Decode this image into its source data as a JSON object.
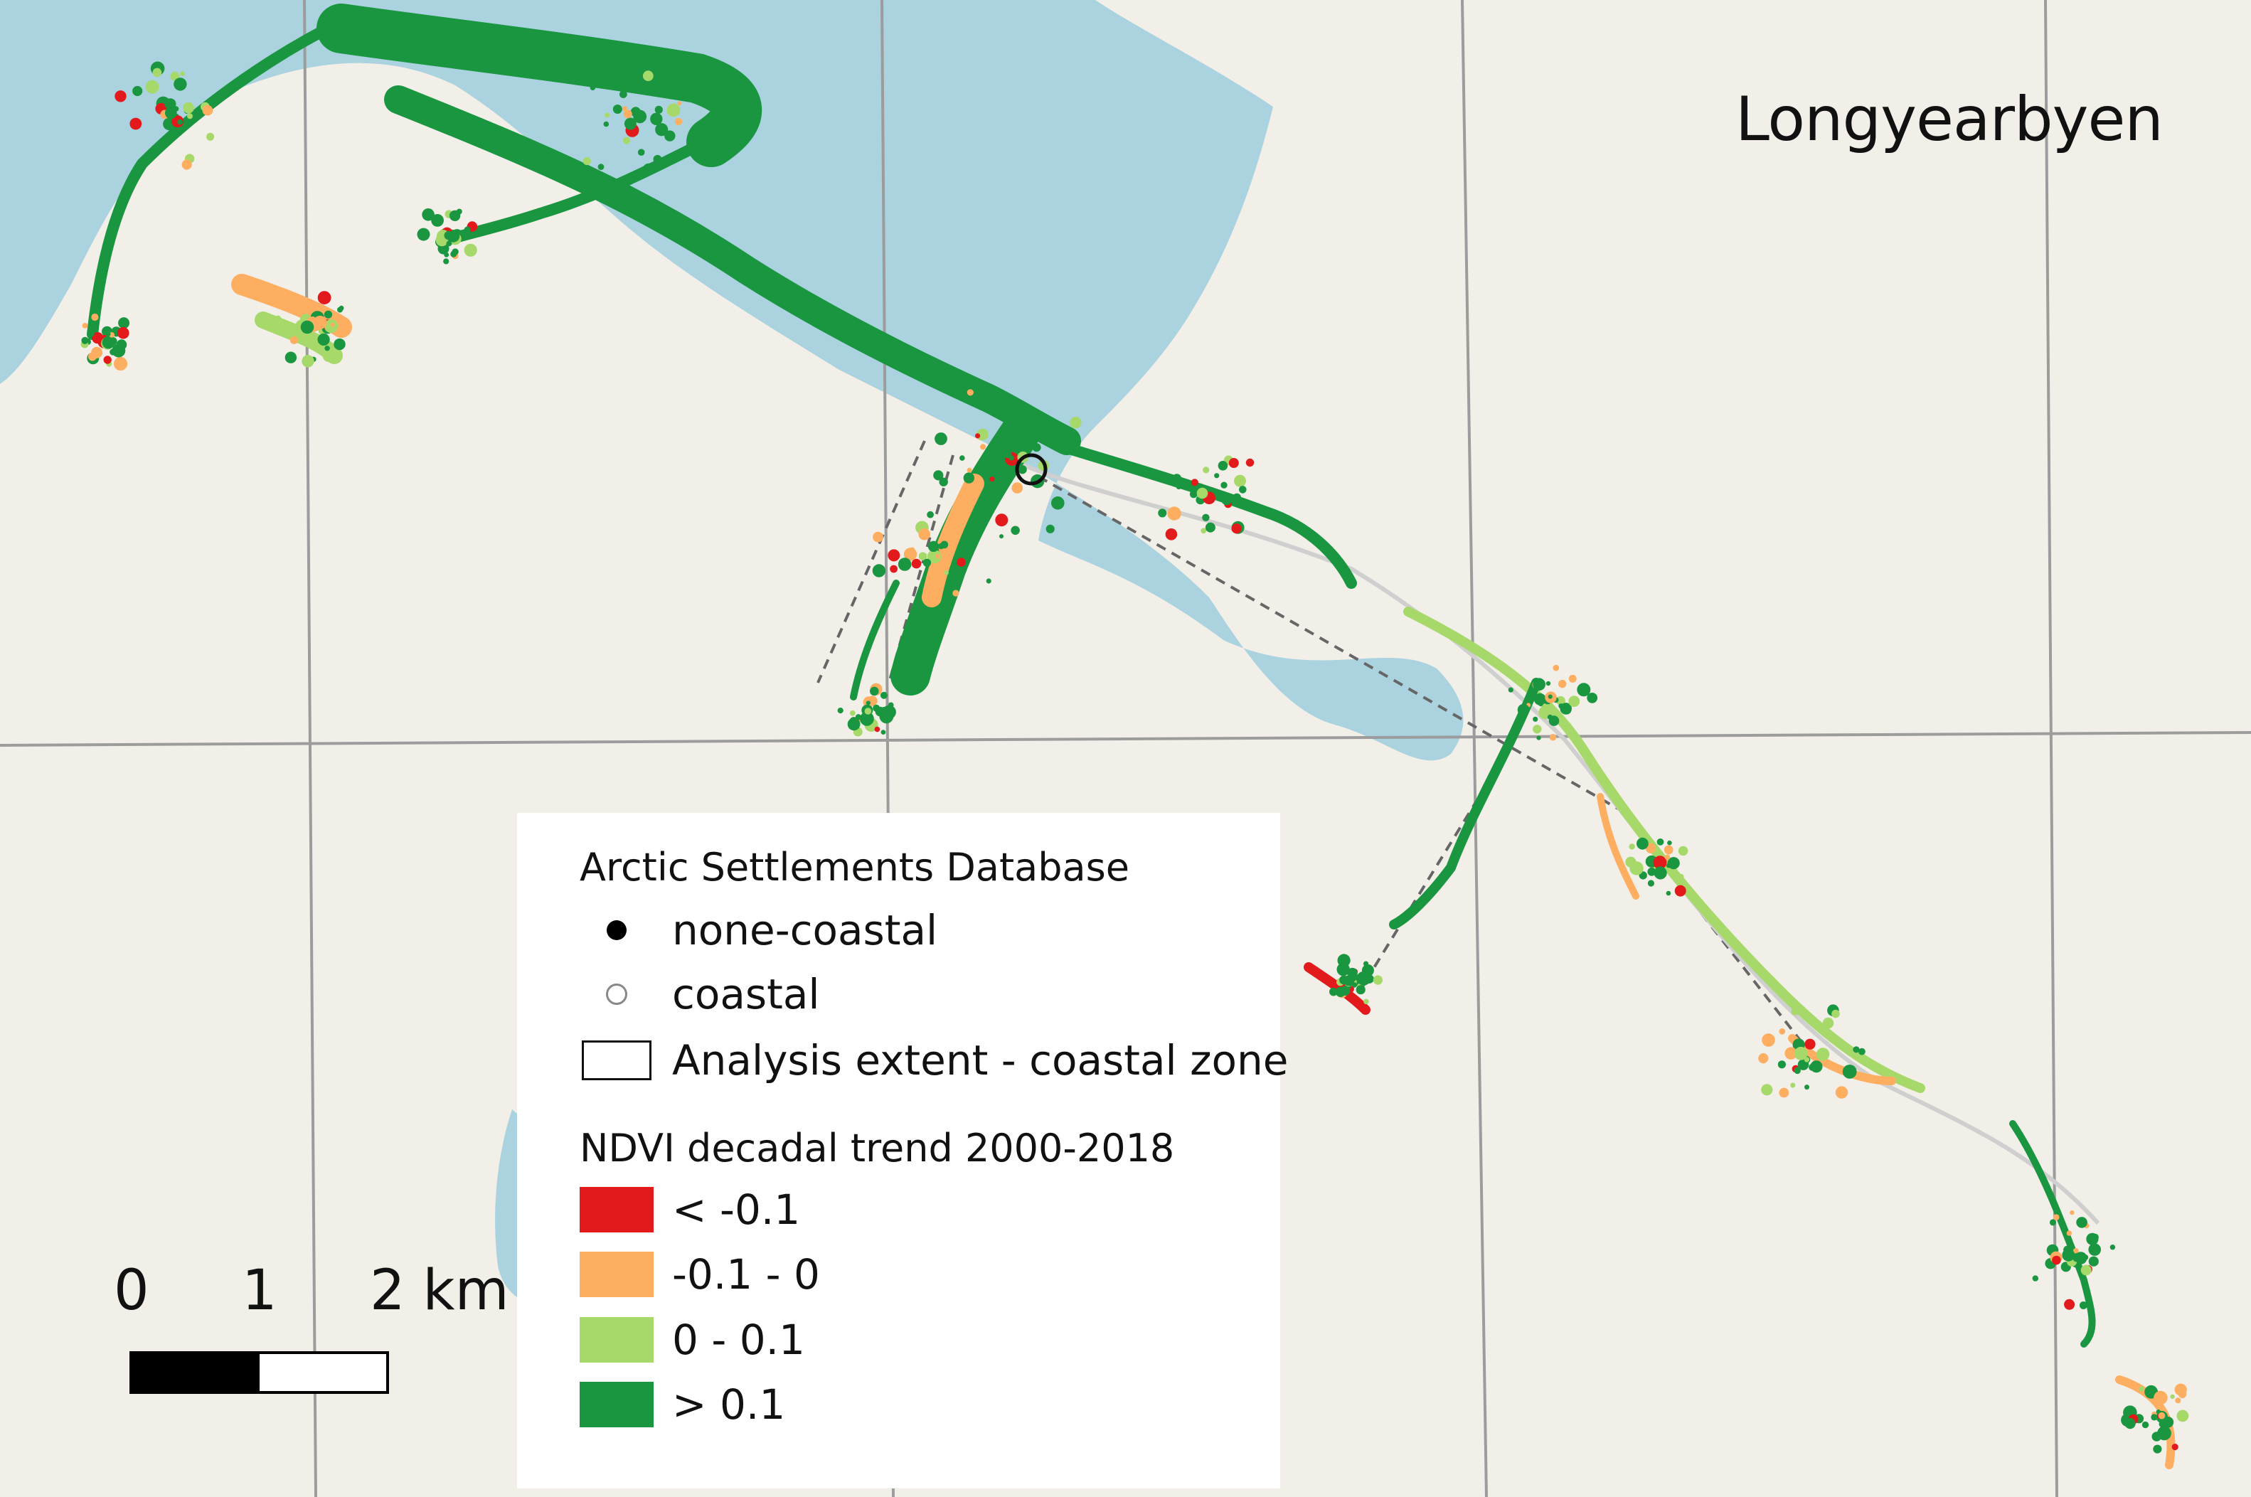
{
  "map": {
    "place_label": "Longyearbyen",
    "colors": {
      "land": "#f2efe9",
      "water": "#aad3df",
      "grid": "#9c9c9c",
      "class_lt_neg01": "#e31a1c",
      "class_neg01_0": "#fdae61",
      "class_0_01": "#a6d96a",
      "class_gt_01": "#1a9641"
    }
  },
  "legend": {
    "title": "Arctic Settlements Database",
    "items": [
      {
        "label": "none-coastal",
        "symbol": "filled-circle"
      },
      {
        "label": "coastal",
        "symbol": "hollow-circle"
      },
      {
        "label": "Analysis extent - coastal zone",
        "symbol": "outlined-rectangle"
      }
    ],
    "ndvi_title": "NDVI decadal trend 2000-2018",
    "ndvi_classes": [
      {
        "label": "< -0.1",
        "color": "#e31a1c"
      },
      {
        "label": "-0.1 - 0",
        "color": "#fdae61"
      },
      {
        "label": "0 - 0.1",
        "color": "#a6d96a"
      },
      {
        "label": "> 0.1",
        "color": "#1a9641"
      }
    ]
  },
  "scalebar": {
    "labels": [
      "0",
      "1",
      "2 km"
    ]
  }
}
